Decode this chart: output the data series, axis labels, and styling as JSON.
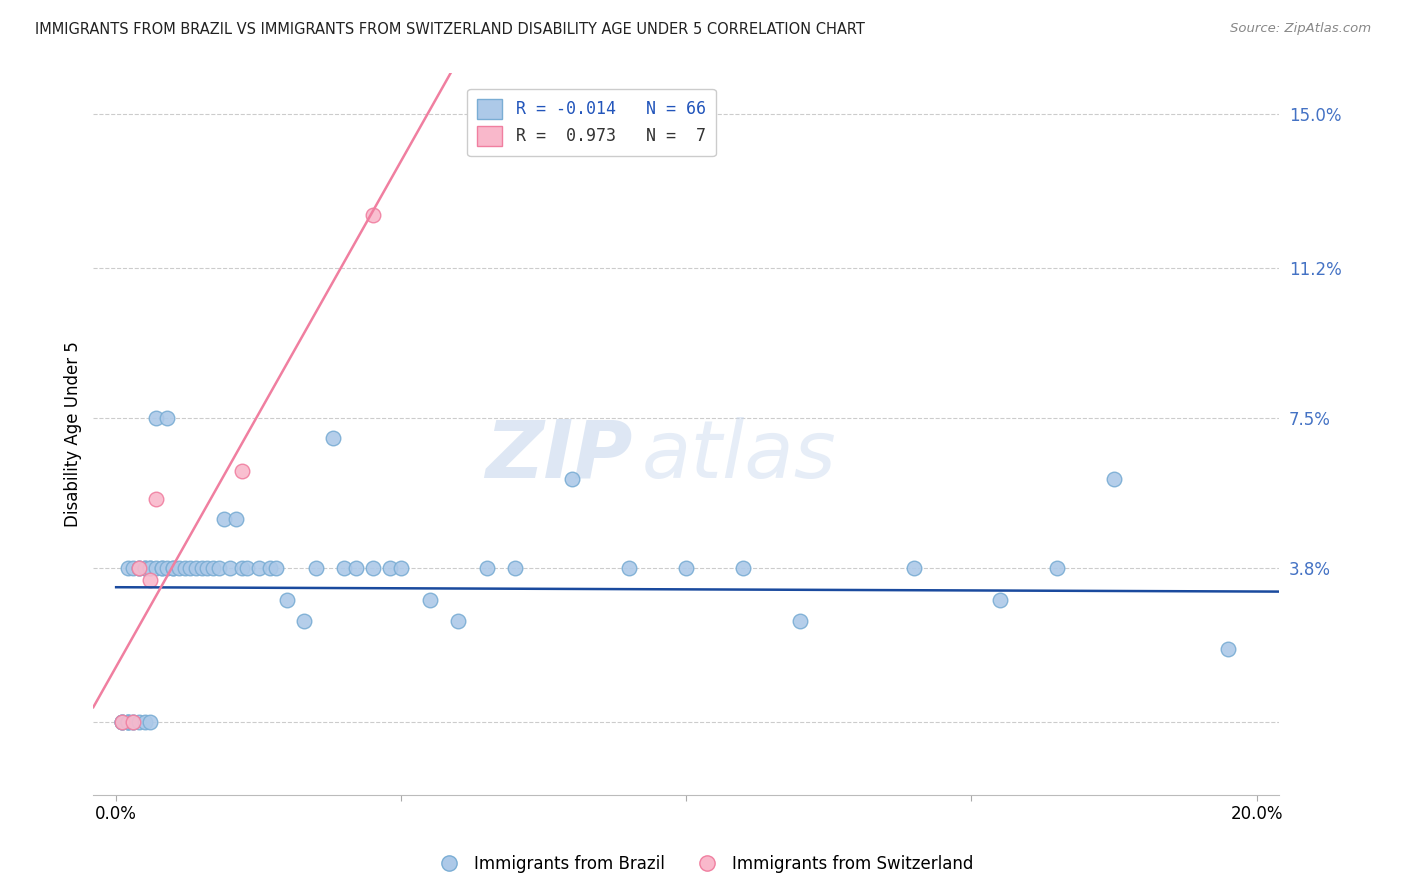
{
  "title": "IMMIGRANTS FROM BRAZIL VS IMMIGRANTS FROM SWITZERLAND DISABILITY AGE UNDER 5 CORRELATION CHART",
  "source": "Source: ZipAtlas.com",
  "ylabel": "Disability Age Under 5",
  "xlim": [
    -0.004,
    0.204
  ],
  "ylim": [
    -0.018,
    0.16
  ],
  "ytick_vals": [
    0.0,
    0.038,
    0.075,
    0.112,
    0.15
  ],
  "ytick_labels": [
    "",
    "3.8%",
    "7.5%",
    "11.2%",
    "15.0%"
  ],
  "xtick_vals": [
    0.0,
    0.05,
    0.1,
    0.15,
    0.2
  ],
  "xtick_labels": [
    "0.0%",
    "",
    "",
    "",
    "20.0%"
  ],
  "brazil_color": "#adc9e8",
  "brazil_edge": "#7aadd4",
  "switzerland_color": "#f9b8cb",
  "switzerland_edge": "#f07fa0",
  "trend_brazil_color": "#1a4a9e",
  "trend_switzerland_color": "#f07fa0",
  "legend_brazil_label": "Immigrants from Brazil",
  "legend_switzerland_label": "Immigrants from Switzerland",
  "R_brazil": -0.014,
  "N_brazil": 66,
  "R_switzerland": 0.973,
  "N_switzerland": 7,
  "brazil_x": [
    0.001,
    0.001,
    0.001,
    0.002,
    0.002,
    0.002,
    0.002,
    0.003,
    0.003,
    0.003,
    0.004,
    0.004,
    0.004,
    0.005,
    0.005,
    0.005,
    0.006,
    0.006,
    0.006,
    0.007,
    0.007,
    0.008,
    0.008,
    0.009,
    0.009,
    0.01,
    0.01,
    0.011,
    0.012,
    0.013,
    0.014,
    0.015,
    0.016,
    0.017,
    0.018,
    0.019,
    0.02,
    0.021,
    0.022,
    0.023,
    0.025,
    0.027,
    0.028,
    0.03,
    0.033,
    0.035,
    0.038,
    0.04,
    0.042,
    0.045,
    0.048,
    0.05,
    0.055,
    0.06,
    0.065,
    0.07,
    0.08,
    0.09,
    0.1,
    0.11,
    0.12,
    0.14,
    0.155,
    0.165,
    0.175,
    0.195
  ],
  "brazil_y": [
    0.0,
    0.0,
    0.0,
    0.0,
    0.0,
    0.0,
    0.038,
    0.0,
    0.0,
    0.038,
    0.0,
    0.038,
    0.038,
    0.0,
    0.038,
    0.038,
    0.038,
    0.038,
    0.0,
    0.038,
    0.075,
    0.038,
    0.038,
    0.038,
    0.075,
    0.038,
    0.038,
    0.038,
    0.038,
    0.038,
    0.038,
    0.038,
    0.038,
    0.038,
    0.038,
    0.05,
    0.038,
    0.05,
    0.038,
    0.038,
    0.038,
    0.038,
    0.038,
    0.03,
    0.025,
    0.038,
    0.07,
    0.038,
    0.038,
    0.038,
    0.038,
    0.038,
    0.03,
    0.025,
    0.038,
    0.038,
    0.06,
    0.038,
    0.038,
    0.038,
    0.025,
    0.038,
    0.03,
    0.038,
    0.06,
    0.018
  ],
  "switzerland_x": [
    0.001,
    0.003,
    0.004,
    0.006,
    0.007,
    0.022,
    0.045
  ],
  "switzerland_y": [
    0.0,
    0.0,
    0.038,
    0.035,
    0.055,
    0.062,
    0.125
  ],
  "watermark_zip": "ZIP",
  "watermark_atlas": "atlas",
  "background_color": "#ffffff",
  "grid_color": "#cccccc"
}
